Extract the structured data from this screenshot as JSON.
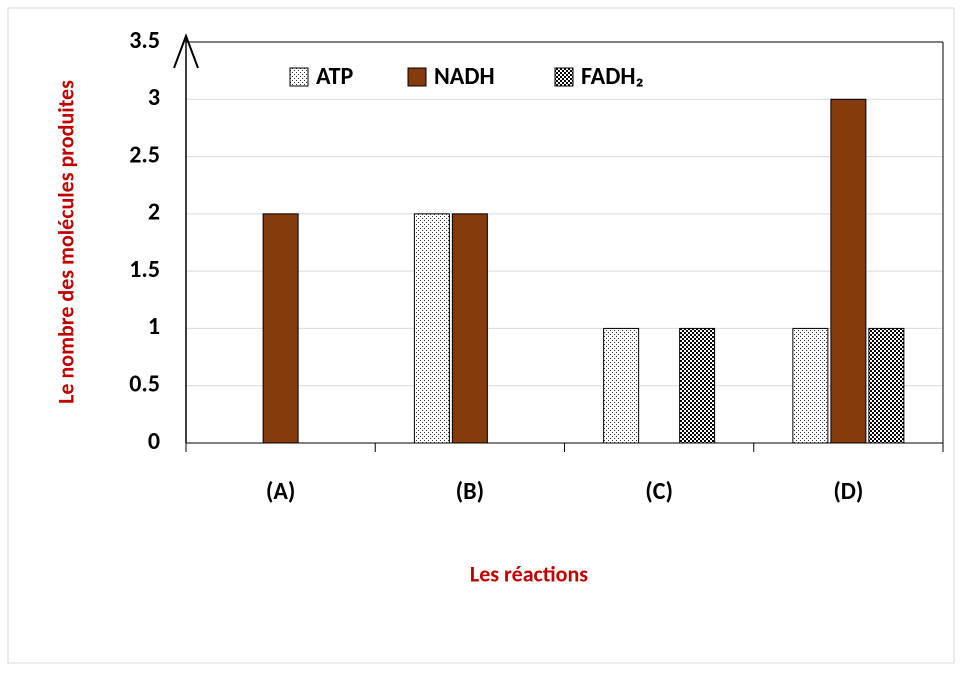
{
  "chart_data": {
    "type": "bar",
    "x_label": "Les réactions",
    "y_label": "Le nombre des molécules produites",
    "categories": [
      "(A)",
      "(B)",
      "(C)",
      "(D)"
    ],
    "series": [
      {
        "name": "ATP",
        "color": "#ffffff",
        "pattern": "dots",
        "values": [
          0,
          2,
          1,
          1
        ]
      },
      {
        "name": "NADH",
        "color": "#843c0c",
        "pattern": "solid",
        "values": [
          2,
          2,
          0,
          3
        ]
      },
      {
        "name": "FADH₂",
        "color": "#ffffff",
        "pattern": "checker",
        "values": [
          0,
          0,
          1,
          1
        ]
      }
    ],
    "ylim": [
      0,
      3.5
    ],
    "yticks": [
      0,
      0.5,
      1,
      1.5,
      2,
      2.5,
      3,
      3.5
    ],
    "grid": true,
    "legend": "top"
  }
}
